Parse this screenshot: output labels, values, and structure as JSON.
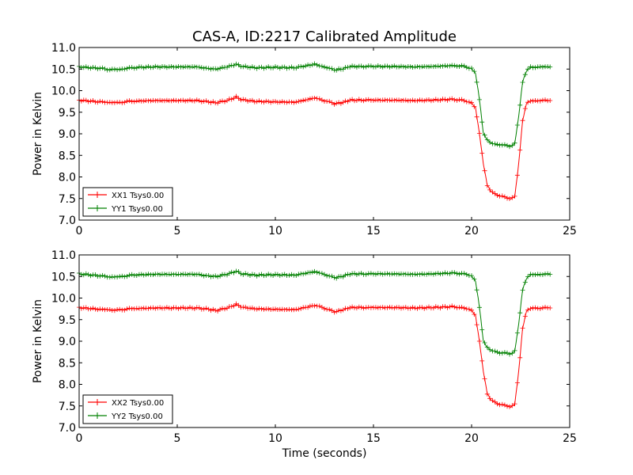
{
  "figure": {
    "title": "CAS-A, ID:2217 Calibrated Amplitude",
    "xlabel": "Time (seconds)"
  },
  "chart_data": [
    {
      "type": "line",
      "title": "CAS-A, ID:2217 Calibrated Amplitude",
      "xlabel": "",
      "ylabel": "Power in Kelvin",
      "xlim": [
        0,
        25
      ],
      "ylim": [
        7.0,
        11.0
      ],
      "xticks": [
        "0",
        "5",
        "10",
        "15",
        "20",
        "25"
      ],
      "yticks": [
        "7.0",
        "7.5",
        "8.0",
        "8.5",
        "9.0",
        "9.5",
        "10.0",
        "10.5",
        "11.0"
      ],
      "grid": false,
      "legend": "lower-left",
      "series": [
        {
          "name": "XX1 Tsys0.00",
          "color": "#ff0000",
          "x": [
            0,
            1,
            1.5,
            2,
            2.5,
            3,
            4,
            5,
            6,
            6.6,
            7,
            7.6,
            8,
            8.3,
            9,
            10,
            11,
            11.6,
            12,
            12.5,
            13,
            13.4,
            13.8,
            14.5,
            15,
            16,
            17,
            18,
            19,
            19.5,
            20,
            20.2,
            20.4,
            20.6,
            20.8,
            21,
            21.5,
            22,
            22.2,
            22.4,
            22.6,
            22.8,
            23,
            23.5,
            24
          ],
          "y": [
            9.78,
            9.74,
            9.73,
            9.72,
            9.75,
            9.76,
            9.77,
            9.77,
            9.77,
            9.74,
            9.72,
            9.78,
            9.85,
            9.79,
            9.75,
            9.74,
            9.73,
            9.79,
            9.83,
            9.77,
            9.7,
            9.72,
            9.78,
            9.78,
            9.78,
            9.78,
            9.77,
            9.78,
            9.8,
            9.78,
            9.72,
            9.6,
            9.0,
            8.3,
            7.8,
            7.65,
            7.55,
            7.5,
            7.55,
            8.3,
            9.3,
            9.7,
            9.76,
            9.77,
            9.77
          ]
        },
        {
          "name": "YY1 Tsys0.00",
          "color": "#008000",
          "x": [
            0,
            1,
            1.5,
            2,
            2.5,
            3,
            4,
            5,
            6,
            6.6,
            7,
            7.6,
            8,
            8.3,
            9,
            10,
            11,
            11.6,
            12,
            12.5,
            13,
            13.4,
            13.8,
            14.5,
            15,
            16,
            17,
            18,
            19,
            19.5,
            20,
            20.2,
            20.4,
            20.6,
            20.8,
            21,
            21.5,
            22,
            22.2,
            22.4,
            22.6,
            22.8,
            23,
            23.5,
            24
          ],
          "y": [
            10.55,
            10.52,
            10.49,
            10.49,
            10.52,
            10.54,
            10.55,
            10.55,
            10.55,
            10.51,
            10.5,
            10.56,
            10.61,
            10.56,
            10.53,
            10.54,
            10.53,
            10.58,
            10.61,
            10.55,
            10.48,
            10.5,
            10.56,
            10.56,
            10.56,
            10.56,
            10.55,
            10.56,
            10.58,
            10.57,
            10.52,
            10.4,
            9.8,
            9.0,
            8.85,
            8.78,
            8.74,
            8.72,
            8.78,
            9.4,
            10.2,
            10.45,
            10.54,
            10.55,
            10.55
          ]
        }
      ]
    },
    {
      "type": "line",
      "title": "",
      "xlabel": "Time (seconds)",
      "ylabel": "Power in Kelvin",
      "xlim": [
        0,
        25
      ],
      "ylim": [
        7.0,
        11.0
      ],
      "xticks": [
        "0",
        "5",
        "10",
        "15",
        "20",
        "25"
      ],
      "yticks": [
        "7.0",
        "7.5",
        "8.0",
        "8.5",
        "9.0",
        "9.5",
        "10.0",
        "10.5",
        "11.0"
      ],
      "grid": false,
      "legend": "lower-left",
      "series": [
        {
          "name": "XX2 Tsys0.00",
          "color": "#ff0000",
          "x": [
            0,
            1,
            1.5,
            2,
            2.5,
            3,
            4,
            5,
            6,
            6.6,
            7,
            7.6,
            8,
            8.3,
            9,
            10,
            11,
            11.6,
            12,
            12.5,
            13,
            13.4,
            13.8,
            14.5,
            15,
            16,
            17,
            18,
            19,
            19.5,
            20,
            20.2,
            20.4,
            20.6,
            20.8,
            21,
            21.5,
            22,
            22.2,
            22.4,
            22.6,
            22.8,
            23,
            23.5,
            24
          ],
          "y": [
            9.78,
            9.74,
            9.73,
            9.72,
            9.75,
            9.76,
            9.77,
            9.77,
            9.77,
            9.74,
            9.71,
            9.78,
            9.85,
            9.79,
            9.75,
            9.74,
            9.73,
            9.79,
            9.83,
            9.77,
            9.68,
            9.72,
            9.78,
            9.78,
            9.78,
            9.78,
            9.77,
            9.78,
            9.8,
            9.78,
            9.72,
            9.6,
            9.0,
            8.3,
            7.78,
            7.62,
            7.53,
            7.48,
            7.55,
            8.3,
            9.3,
            9.7,
            9.76,
            9.77,
            9.77
          ]
        },
        {
          "name": "YY2 Tsys0.00",
          "color": "#008000",
          "x": [
            0,
            1,
            1.5,
            2,
            2.5,
            3,
            4,
            5,
            6,
            6.6,
            7,
            7.6,
            8,
            8.3,
            9,
            10,
            11,
            11.6,
            12,
            12.5,
            13,
            13.4,
            13.8,
            14.5,
            15,
            16,
            17,
            18,
            19,
            19.5,
            20,
            20.2,
            20.4,
            20.6,
            20.8,
            21,
            21.5,
            22,
            22.2,
            22.4,
            22.6,
            22.8,
            23,
            23.5,
            24
          ],
          "y": [
            10.56,
            10.52,
            10.49,
            10.49,
            10.52,
            10.54,
            10.55,
            10.55,
            10.55,
            10.51,
            10.5,
            10.56,
            10.62,
            10.56,
            10.53,
            10.54,
            10.53,
            10.58,
            10.61,
            10.55,
            10.47,
            10.5,
            10.56,
            10.56,
            10.56,
            10.56,
            10.55,
            10.56,
            10.58,
            10.57,
            10.52,
            10.4,
            9.8,
            9.0,
            8.85,
            8.78,
            8.73,
            8.71,
            8.78,
            9.4,
            10.2,
            10.45,
            10.54,
            10.55,
            10.55
          ]
        }
      ]
    }
  ]
}
